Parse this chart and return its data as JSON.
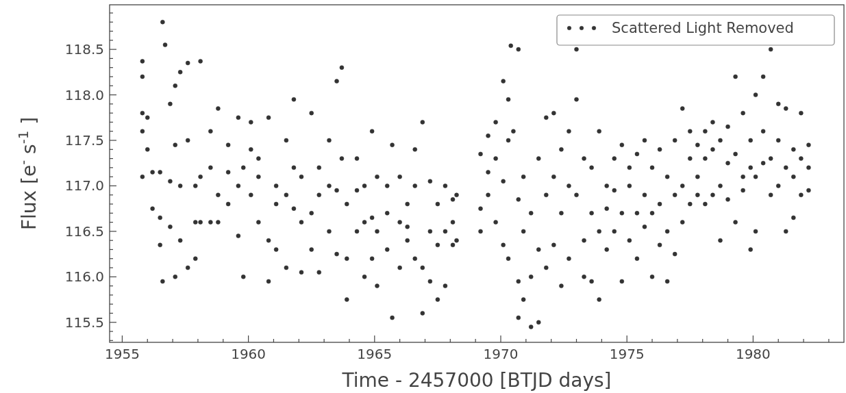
{
  "chart_data": {
    "type": "scatter",
    "xlabel": "Time - 2457000 [BTJD days]",
    "ylabel": "Flux [e$^{-}$s$^{-1}$]",
    "xlim": [
      1954.5,
      1983.6
    ],
    "ylim": [
      115.28,
      118.99
    ],
    "xticks": [
      1955,
      {
        "value": 1956,
        "label": null
      },
      {
        "value": 1957,
        "label": null
      },
      {
        "value": 1958,
        "label": null
      },
      {
        "value": 1959,
        "label": null
      },
      1960,
      {
        "value": 1961,
        "label": null
      },
      {
        "value": 1962,
        "label": null
      },
      {
        "value": 1963,
        "label": null
      },
      {
        "value": 1964,
        "label": null
      },
      1965,
      {
        "value": 1966,
        "label": null
      },
      {
        "value": 1967,
        "label": null
      },
      {
        "value": 1968,
        "label": null
      },
      {
        "value": 1969,
        "label": null
      },
      1970,
      {
        "value": 1971,
        "label": null
      },
      {
        "value": 1972,
        "label": null
      },
      {
        "value": 1973,
        "label": null
      },
      {
        "value": 1974,
        "label": null
      },
      1975,
      {
        "value": 1976,
        "label": null
      },
      {
        "value": 1977,
        "label": null
      },
      {
        "value": 1978,
        "label": null
      },
      {
        "value": 1979,
        "label": null
      },
      1980,
      {
        "value": 1981,
        "label": null
      },
      {
        "value": 1982,
        "label": null
      },
      {
        "value": 1983,
        "label": null
      }
    ],
    "yticks": [
      {
        "value": 115.3,
        "label": null
      },
      {
        "value": 115.4,
        "label": null
      },
      {
        "value": 115.5,
        "label": "115.5"
      },
      {
        "value": 115.6,
        "label": null
      },
      {
        "value": 115.7,
        "label": null
      },
      {
        "value": 115.8,
        "label": null
      },
      {
        "value": 115.9,
        "label": null
      },
      {
        "value": 116.0,
        "label": "116.0"
      },
      {
        "value": 116.1,
        "label": null
      },
      {
        "value": 116.2,
        "label": null
      },
      {
        "value": 116.3,
        "label": null
      },
      {
        "value": 116.4,
        "label": null
      },
      {
        "value": 116.5,
        "label": "116.5"
      },
      {
        "value": 116.6,
        "label": null
      },
      {
        "value": 116.7,
        "label": null
      },
      {
        "value": 116.8,
        "label": null
      },
      {
        "value": 116.9,
        "label": null
      },
      {
        "value": 117.0,
        "label": "117.0"
      },
      {
        "value": 117.1,
        "label": null
      },
      {
        "value": 117.2,
        "label": null
      },
      {
        "value": 117.3,
        "label": null
      },
      {
        "value": 117.4,
        "label": null
      },
      {
        "value": 117.5,
        "label": "117.5"
      },
      {
        "value": 117.6,
        "label": null
      },
      {
        "value": 117.7,
        "label": null
      },
      {
        "value": 117.8,
        "label": null
      },
      {
        "value": 117.9,
        "label": null
      },
      {
        "value": 118.0,
        "label": "118.0"
      },
      {
        "value": 118.1,
        "label": null
      },
      {
        "value": 118.2,
        "label": null
      },
      {
        "value": 118.3,
        "label": null
      },
      {
        "value": 118.4,
        "label": null
      },
      {
        "value": 118.5,
        "label": "118.5"
      },
      {
        "value": 118.6,
        "label": null
      },
      {
        "value": 118.7,
        "label": null
      },
      {
        "value": 118.8,
        "label": null
      },
      {
        "value": 118.9,
        "label": null
      }
    ],
    "grid": false,
    "legend": "top right",
    "marker": "circle",
    "series": [
      {
        "name": "Scattered Light Removed",
        "color": "#333333",
        "x": [
          1955.8,
          1955.8,
          1955.8,
          1955.8,
          1955.8,
          1956.0,
          1956.0,
          1956.2,
          1956.2,
          1956.5,
          1956.5,
          1956.5,
          1956.6,
          1956.6,
          1956.7,
          1956.9,
          1956.9,
          1956.9,
          1957.1,
          1957.1,
          1957.1,
          1957.3,
          1957.3,
          1957.3,
          1957.6,
          1957.6,
          1957.6,
          1957.9,
          1957.9,
          1957.9,
          1958.1,
          1958.1,
          1958.1,
          1958.5,
          1958.5,
          1958.5,
          1958.8,
          1958.8,
          1958.8,
          1959.2,
          1959.2,
          1959.2,
          1959.6,
          1959.6,
          1959.6,
          1959.8,
          1959.8,
          1960.1,
          1960.1,
          1960.1,
          1960.4,
          1960.4,
          1960.4,
          1960.8,
          1960.8,
          1960.8,
          1961.1,
          1961.1,
          1961.1,
          1961.5,
          1961.5,
          1961.5,
          1961.8,
          1961.8,
          1961.8,
          1962.1,
          1962.1,
          1962.1,
          1962.5,
          1962.5,
          1962.5,
          1962.8,
          1962.8,
          1962.8,
          1963.2,
          1963.2,
          1963.2,
          1963.5,
          1963.5,
          1963.5,
          1963.7,
          1963.7,
          1963.9,
          1963.9,
          1963.9,
          1964.3,
          1964.3,
          1964.3,
          1964.6,
          1964.6,
          1964.6,
          1964.9,
          1964.9,
          1964.9,
          1965.1,
          1965.1,
          1965.1,
          1965.5,
          1965.5,
          1965.5,
          1965.7,
          1965.7,
          1966.0,
          1966.0,
          1966.0,
          1966.3,
          1966.3,
          1966.3,
          1966.6,
          1966.6,
          1966.6,
          1966.9,
          1966.9,
          1966.9,
          1967.2,
          1967.2,
          1967.2,
          1967.5,
          1967.5,
          1967.5,
          1967.8,
          1967.8,
          1967.8,
          1968.1,
          1968.1,
          1968.1,
          1968.25,
          1968.25,
          1969.2,
          1969.2,
          1969.2,
          1969.5,
          1969.5,
          1969.5,
          1969.8,
          1969.8,
          1969.8,
          1970.1,
          1970.1,
          1970.1,
          1970.3,
          1970.3,
          1970.3,
          1970.4,
          1970.5,
          1970.7,
          1970.7,
          1970.7,
          1970.7,
          1970.9,
          1970.9,
          1970.9,
          1971.2,
          1971.2,
          1971.2,
          1971.5,
          1971.5,
          1971.5,
          1971.8,
          1971.8,
          1971.8,
          1972.1,
          1972.1,
          1972.1,
          1972.4,
          1972.4,
          1972.4,
          1972.7,
          1972.7,
          1972.7,
          1973.0,
          1973.0,
          1973.0,
          1973.3,
          1973.3,
          1973.3,
          1973.6,
          1973.6,
          1973.6,
          1973.9,
          1973.9,
          1973.9,
          1974.2,
          1974.2,
          1974.2,
          1974.5,
          1974.5,
          1974.5,
          1974.8,
          1974.8,
          1974.8,
          1975.1,
          1975.1,
          1975.1,
          1975.4,
          1975.4,
          1975.4,
          1975.7,
          1975.7,
          1975.7,
          1976.0,
          1976.0,
          1976.0,
          1976.3,
          1976.3,
          1976.3,
          1976.6,
          1976.6,
          1976.6,
          1976.9,
          1976.9,
          1976.9,
          1977.2,
          1977.2,
          1977.2,
          1977.5,
          1977.5,
          1977.5,
          1977.8,
          1977.8,
          1977.8,
          1978.1,
          1978.1,
          1978.1,
          1978.4,
          1978.4,
          1978.4,
          1978.7,
          1978.7,
          1978.7,
          1979.0,
          1979.0,
          1979.0,
          1979.3,
          1979.3,
          1979.3,
          1979.6,
          1979.6,
          1979.6,
          1979.9,
          1979.9,
          1979.9,
          1980.1,
          1980.1,
          1980.1,
          1980.4,
          1980.4,
          1980.4,
          1980.7,
          1980.7,
          1980.7,
          1981.0,
          1981.0,
          1981.0,
          1981.3,
          1981.3,
          1981.3,
          1981.6,
          1981.6,
          1981.6,
          1981.9,
          1981.9,
          1981.9,
          1982.2,
          1982.2,
          1982.2
        ],
        "values": [
          118.37,
          118.2,
          117.8,
          117.6,
          117.1,
          117.75,
          117.4,
          117.15,
          116.75,
          116.35,
          116.65,
          117.15,
          118.8,
          115.95,
          118.55,
          117.9,
          116.55,
          117.05,
          118.1,
          116.0,
          117.45,
          118.25,
          116.4,
          117.0,
          118.35,
          116.1,
          117.5,
          116.6,
          117.0,
          116.2,
          118.37,
          116.6,
          117.1,
          116.6,
          117.2,
          117.6,
          117.85,
          116.9,
          116.6,
          117.45,
          116.8,
          117.15,
          116.45,
          117.75,
          117.0,
          116.0,
          117.2,
          117.4,
          117.7,
          116.9,
          116.6,
          117.1,
          117.3,
          115.95,
          116.4,
          117.75,
          116.8,
          117.0,
          116.3,
          117.5,
          116.9,
          116.1,
          117.95,
          116.75,
          117.2,
          116.05,
          116.6,
          117.1,
          117.8,
          116.7,
          116.3,
          116.9,
          116.05,
          117.2,
          116.5,
          117.0,
          117.5,
          118.15,
          116.95,
          116.25,
          118.3,
          117.3,
          115.75,
          116.2,
          116.8,
          117.3,
          116.5,
          116.95,
          116.0,
          117.0,
          116.6,
          117.6,
          116.65,
          116.2,
          115.9,
          117.1,
          116.5,
          117.0,
          116.3,
          116.7,
          115.55,
          117.45,
          116.1,
          116.6,
          117.1,
          116.4,
          116.8,
          116.55,
          117.0,
          116.2,
          117.4,
          115.6,
          117.7,
          116.1,
          116.5,
          117.05,
          115.95,
          115.75,
          116.8,
          116.35,
          117.0,
          116.5,
          115.9,
          116.85,
          116.35,
          116.6,
          116.9,
          116.4,
          117.35,
          116.75,
          116.5,
          117.55,
          116.9,
          117.15,
          117.7,
          116.6,
          117.3,
          118.15,
          116.35,
          117.05,
          117.5,
          116.2,
          117.95,
          118.54,
          117.6,
          118.5,
          116.85,
          115.95,
          115.55,
          115.75,
          116.5,
          117.1,
          115.45,
          116.0,
          116.7,
          115.5,
          116.3,
          117.3,
          117.75,
          116.1,
          116.9,
          117.8,
          116.35,
          117.1,
          116.7,
          115.9,
          117.4,
          117.0,
          116.2,
          117.6,
          118.5,
          117.95,
          116.9,
          116.4,
          117.3,
          116.0,
          116.7,
          117.2,
          115.95,
          115.75,
          117.6,
          116.5,
          117.0,
          116.3,
          116.75,
          117.3,
          116.5,
          116.95,
          115.95,
          117.45,
          116.7,
          117.0,
          116.4,
          117.2,
          116.7,
          117.35,
          116.2,
          117.5,
          116.9,
          116.55,
          117.2,
          116.0,
          116.7,
          116.8,
          117.4,
          116.35,
          115.95,
          117.1,
          116.5,
          116.25,
          117.5,
          116.9,
          117.85,
          117.0,
          116.6,
          117.3,
          116.8,
          117.6,
          117.45,
          116.9,
          117.1,
          117.6,
          116.8,
          117.3,
          117.4,
          116.9,
          117.7,
          116.4,
          117.5,
          117.0,
          117.25,
          117.65,
          116.85,
          118.2,
          116.6,
          117.35,
          117.8,
          117.1,
          116.95,
          116.3,
          117.5,
          117.2,
          118.0,
          117.1,
          116.5,
          118.2,
          117.6,
          117.25,
          118.5,
          117.3,
          116.9,
          117.9,
          117.5,
          117.0,
          116.5,
          117.85,
          117.2,
          116.65,
          117.4,
          117.1,
          117.8,
          117.3,
          116.9,
          117.45,
          116.95,
          117.2
        ]
      }
    ]
  }
}
